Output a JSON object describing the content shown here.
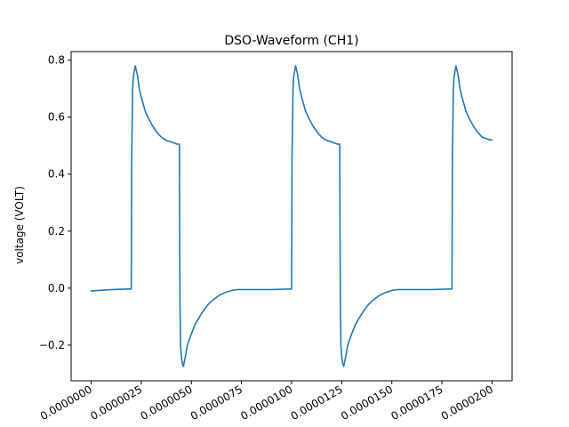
{
  "chart_data": {
    "type": "line",
    "title": "DSO-Waveform (CH1)",
    "xlabel": "",
    "ylabel": "voltage (VOLT)",
    "xlim": [
      -1e-06,
      2.1e-05
    ],
    "ylim": [
      -0.325,
      0.83
    ],
    "grid": false,
    "x_ticks": [
      0.0,
      2.5e-06,
      5e-06,
      7.5e-06,
      1e-05,
      1.25e-05,
      1.5e-05,
      1.75e-05,
      2e-05
    ],
    "x_tick_labels": [
      "0.0000000",
      "0.0000025",
      "0.0000050",
      "0.0000075",
      "0.0000100",
      "0.0000125",
      "0.0000150",
      "0.0000175",
      "0.0000200"
    ],
    "y_ticks": [
      -0.2,
      0.0,
      0.2,
      0.4,
      0.6,
      0.8
    ],
    "y_tick_labels": [
      "−0.2",
      "0.0",
      "0.2",
      "0.4",
      "0.6",
      "0.8"
    ],
    "series": [
      {
        "color": "#1f77b4",
        "x": [
          0.0,
          1e-06,
          2e-06,
          2.02e-06,
          2.04e-06,
          2.07e-06,
          2.1e-06,
          2.15e-06,
          2.2e-06,
          2.3e-06,
          2.4e-06,
          2.5e-06,
          2.7e-06,
          2.9e-06,
          3.1e-06,
          3.3e-06,
          3.5e-06,
          3.7e-06,
          3.9e-06,
          4.1e-06,
          4.3e-06,
          4.4e-06,
          4.41e-06,
          4.43e-06,
          4.46e-06,
          4.5e-06,
          4.55e-06,
          4.6e-06,
          4.7e-06,
          4.8e-06,
          5e-06,
          5.2e-06,
          5.5e-06,
          5.8e-06,
          6.1e-06,
          6.4e-06,
          6.7e-06,
          7e-06,
          7.3e-06,
          7.5e-06,
          8e-06,
          9e-06,
          1e-05,
          1.002e-05,
          1.004e-05,
          1.007e-05,
          1.01e-05,
          1.015e-05,
          1.02e-05,
          1.03e-05,
          1.04e-05,
          1.05e-05,
          1.07e-05,
          1.09e-05,
          1.11e-05,
          1.13e-05,
          1.15e-05,
          1.17e-05,
          1.19e-05,
          1.21e-05,
          1.23e-05,
          1.24e-05,
          1.241e-05,
          1.243e-05,
          1.246e-05,
          1.25e-05,
          1.255e-05,
          1.26e-05,
          1.27e-05,
          1.28e-05,
          1.3e-05,
          1.32e-05,
          1.35e-05,
          1.38e-05,
          1.41e-05,
          1.44e-05,
          1.47e-05,
          1.5e-05,
          1.53e-05,
          1.55e-05,
          1.6e-05,
          1.7e-05,
          1.8e-05,
          1.802e-05,
          1.804e-05,
          1.807e-05,
          1.81e-05,
          1.815e-05,
          1.82e-05,
          1.83e-05,
          1.84e-05,
          1.85e-05,
          1.87e-05,
          1.89e-05,
          1.91e-05,
          1.93e-05,
          1.95e-05,
          1.97e-05,
          1.99e-05,
          2e-05
        ],
        "y": [
          -0.01,
          -0.005,
          -0.003,
          0.45,
          0.55,
          0.7,
          0.74,
          0.76,
          0.78,
          0.75,
          0.7,
          0.67,
          0.62,
          0.59,
          0.565,
          0.545,
          0.53,
          0.52,
          0.515,
          0.51,
          0.505,
          0.505,
          0.3,
          -0.05,
          -0.2,
          -0.24,
          -0.265,
          -0.275,
          -0.24,
          -0.2,
          -0.16,
          -0.125,
          -0.09,
          -0.06,
          -0.04,
          -0.025,
          -0.015,
          -0.008,
          -0.005,
          -0.005,
          -0.005,
          -0.005,
          -0.003,
          0.45,
          0.55,
          0.7,
          0.74,
          0.76,
          0.78,
          0.75,
          0.7,
          0.67,
          0.62,
          0.59,
          0.565,
          0.545,
          0.53,
          0.52,
          0.515,
          0.51,
          0.505,
          0.505,
          0.3,
          -0.05,
          -0.2,
          -0.24,
          -0.265,
          -0.275,
          -0.24,
          -0.2,
          -0.16,
          -0.125,
          -0.09,
          -0.06,
          -0.04,
          -0.025,
          -0.015,
          -0.008,
          -0.005,
          -0.005,
          -0.005,
          -0.005,
          -0.003,
          0.45,
          0.55,
          0.7,
          0.74,
          0.76,
          0.78,
          0.75,
          0.7,
          0.67,
          0.62,
          0.59,
          0.565,
          0.545,
          0.53,
          0.525,
          0.52,
          0.52
        ]
      }
    ]
  }
}
